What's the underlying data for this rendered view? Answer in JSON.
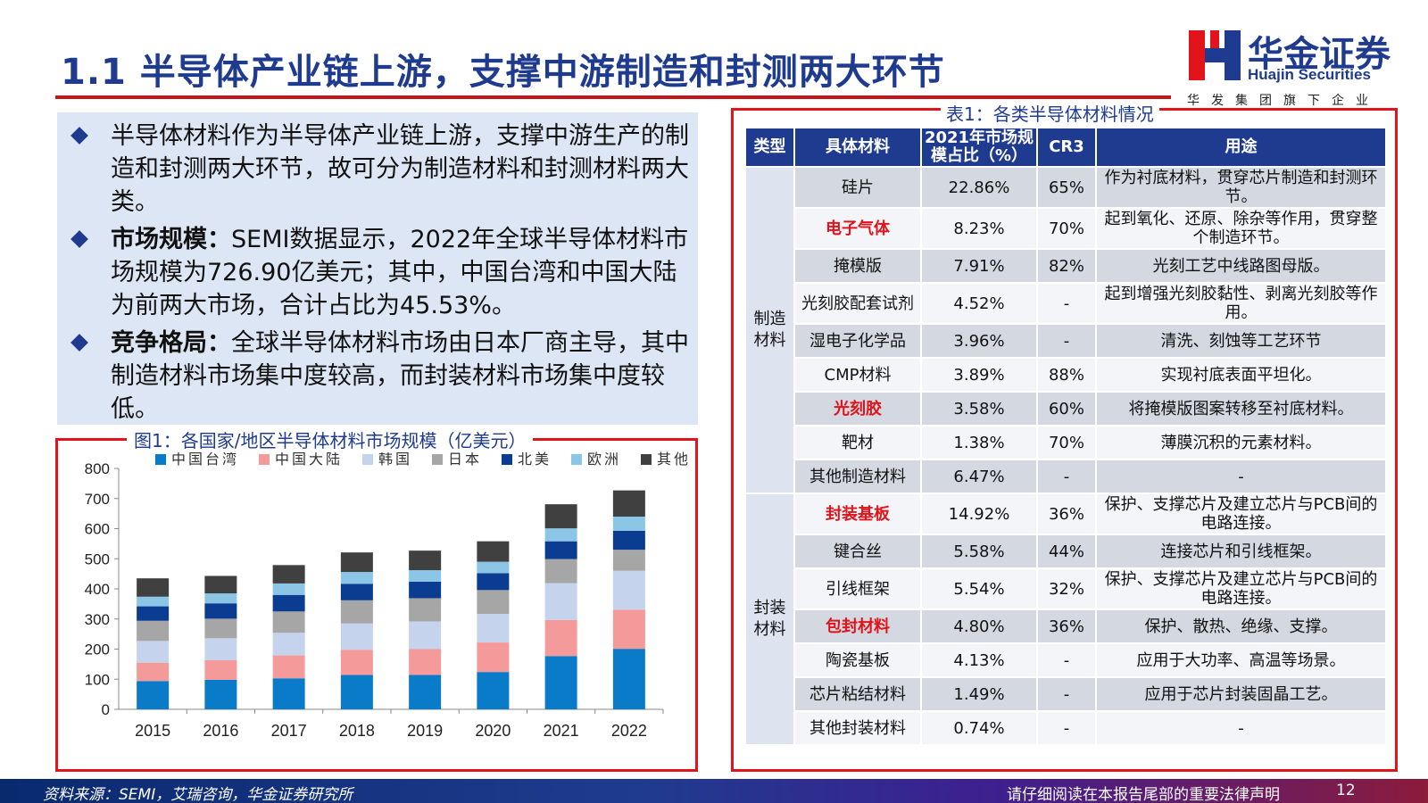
{
  "header": {
    "title": "1.1 半导体产业链上游，支撑中游制造和封测两大环节",
    "logo_cn": "华金证券",
    "logo_en": "Huajin Securities",
    "logo_tagline": "华发集团旗下企业",
    "brand_blue": "#1f3b8f",
    "brand_red": "#c4161c"
  },
  "bullets": [
    {
      "label": "",
      "text": "半导体材料作为半导体产业链上游，支撑中游生产的制造和封测两大环节，故可分为制造材料和封测材料两大类。"
    },
    {
      "label": "市场规模：",
      "text": "SEMI数据显示，2022年全球半导体材料市场规模为726.90亿美元；其中，中国台湾和中国大陆为前两大市场，合计占比为45.53%。"
    },
    {
      "label": "竞争格局：",
      "text": "全球半导体材料市场由日本厂商主导，其中制造材料市场集中度较高，而封装材料市场集中度较低。"
    }
  ],
  "chart_caption": "图1：各国家/地区半导体材料市场规模（亿美元）",
  "chart_data": {
    "type": "bar",
    "stacked": true,
    "categories": [
      "2015",
      "2016",
      "2017",
      "2018",
      "2019",
      "2020",
      "2021",
      "2022"
    ],
    "ylim": [
      0,
      800
    ],
    "yticks": [
      "0",
      "100",
      "200",
      "300",
      "400",
      "500",
      "600",
      "700",
      "800"
    ],
    "legend_position": "top",
    "series": [
      {
        "name": "中国台湾",
        "color": "#0a7bc8",
        "values": [
          94,
          98,
          103,
          114,
          114,
          124,
          177,
          201
        ]
      },
      {
        "name": "中国大陆",
        "color": "#f59a9a",
        "values": [
          61,
          65,
          76,
          84,
          86,
          98,
          120,
          130
        ]
      },
      {
        "name": "韩国",
        "color": "#c5d3ec",
        "values": [
          72,
          73,
          75,
          87,
          92,
          95,
          122,
          129
        ]
      },
      {
        "name": "日本",
        "color": "#a6a6a6",
        "values": [
          67,
          65,
          71,
          77,
          77,
          79,
          80,
          70
        ]
      },
      {
        "name": "北美",
        "color": "#0a3d91",
        "values": [
          48,
          51,
          55,
          55,
          55,
          56,
          59,
          63
        ]
      },
      {
        "name": "欧洲",
        "color": "#8cc6e6",
        "values": [
          32,
          33,
          38,
          39,
          38,
          38,
          43,
          47
        ]
      },
      {
        "name": "其他",
        "color": "#404040",
        "values": [
          61,
          58,
          61,
          65,
          65,
          68,
          80,
          87
        ]
      }
    ]
  },
  "table_caption": "表1：各类半导体材料情况",
  "table": {
    "headers": [
      "类型",
      "具体材料",
      "2021年市场规模占比（%）",
      "CR3",
      "用途"
    ],
    "categories": {
      "manufacturing": "制造\n材料",
      "packaging": "封装\n材料"
    },
    "rows": [
      {
        "name": "硅片",
        "share": "22.86%",
        "cr3": "65%",
        "use": "作为衬底材料，贯穿芯片制造和封测环节。"
      },
      {
        "name": "电子气体",
        "share": "8.23%",
        "cr3": "70%",
        "use": "起到氧化、还原、除杂等作用，贯穿整个制造环节。"
      },
      {
        "name": "掩模版",
        "share": "7.91%",
        "cr3": "82%",
        "use": "光刻工艺中线路图母版。"
      },
      {
        "name": "光刻胶配套试剂",
        "share": "4.52%",
        "cr3": "-",
        "use": "起到增强光刻胶黏性、剥离光刻胶等作用。"
      },
      {
        "name": "湿电子化学品",
        "share": "3.96%",
        "cr3": "-",
        "use": "清洗、刻蚀等工艺环节"
      },
      {
        "name": "CMP材料",
        "share": "3.89%",
        "cr3": "88%",
        "use": "实现衬底表面平坦化。"
      },
      {
        "name": "光刻胶",
        "share": "3.58%",
        "cr3": "60%",
        "use": "将掩模版图案转移至衬底材料。"
      },
      {
        "name": "靶材",
        "share": "1.38%",
        "cr3": "70%",
        "use": "薄膜沉积的元素材料。"
      },
      {
        "name": "其他制造材料",
        "share": "6.47%",
        "cr3": "-",
        "use": "-"
      },
      {
        "name": "封装基板",
        "share": "14.92%",
        "cr3": "36%",
        "use": "保护、支撑芯片及建立芯片与PCB间的电路连接。"
      },
      {
        "name": "键合丝",
        "share": "5.58%",
        "cr3": "44%",
        "use": "连接芯片和引线框架。"
      },
      {
        "name": "引线框架",
        "share": "5.54%",
        "cr3": "32%",
        "use": "保护、支撑芯片及建立芯片与PCB间的电路连接。"
      },
      {
        "name": "包封材料",
        "share": "4.80%",
        "cr3": "36%",
        "use": "保护、散热、绝缘、支撑。"
      },
      {
        "name": "陶瓷基板",
        "share": "4.13%",
        "cr3": "-",
        "use": "应用于大功率、高温等场景。"
      },
      {
        "name": "芯片粘结材料",
        "share": "1.49%",
        "cr3": "-",
        "use": "应用于芯片封装固晶工艺。"
      },
      {
        "name": "其他封装材料",
        "share": "0.74%",
        "cr3": "-",
        "use": "-"
      }
    ]
  },
  "footer": {
    "source": "资料来源：SEMI，艾瑞咨询，华金证券研究所",
    "legal": "请仔细阅读在本报告尾部的重要法律声明",
    "page": "12"
  }
}
